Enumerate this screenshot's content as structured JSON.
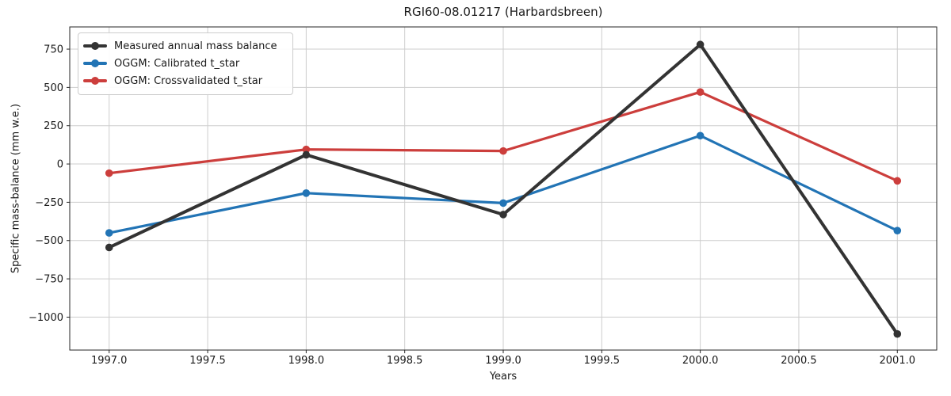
{
  "figure": {
    "background_color": "#ffffff",
    "text_color": "#1a1a1a",
    "grid_color": "#cdcdcd",
    "spine_color": "#262626"
  },
  "chart_data": {
    "type": "line",
    "title": "RGI60-08.01217 (Harbardsbreen)",
    "xlabel": "Years",
    "ylabel": "Specific mass-balance (mm w.e.)",
    "x": [
      1997,
      1998,
      1999,
      2000,
      2001
    ],
    "series": [
      {
        "name": "Measured annual mass balance",
        "color": "#333333",
        "line_width": 4,
        "marker": "circle",
        "values": [
          -545,
          60,
          -330,
          780,
          -1110
        ]
      },
      {
        "name": "OGGM: Calibrated t_star",
        "color": "#2274b5",
        "line_width": 3.2,
        "marker": "circle",
        "values": [
          -450,
          -190,
          -255,
          185,
          -435
        ]
      },
      {
        "name": "OGGM: Crossvalidated t_star",
        "color": "#cc3e3c",
        "line_width": 3.2,
        "marker": "circle",
        "values": [
          -60,
          95,
          85,
          470,
          -110
        ]
      }
    ],
    "xticks": [
      1997.0,
      1997.5,
      1998.0,
      1998.5,
      1999.0,
      1999.5,
      2000.0,
      2000.5,
      2001.0
    ],
    "xtick_labels": [
      "1997.0",
      "1997.5",
      "1998.0",
      "1998.5",
      "1999.0",
      "1999.5",
      "2000.0",
      "2000.5",
      "2001.0"
    ],
    "yticks": [
      750,
      500,
      250,
      0,
      -250,
      -500,
      -750,
      -1000
    ],
    "ytick_labels": [
      "750",
      "500",
      "250",
      "0",
      "−250",
      "−500",
      "−750",
      "−1000"
    ],
    "xlim": [
      1996.8,
      2001.2
    ],
    "ylim": [
      -1215,
      895
    ],
    "grid": true,
    "legend_position": "upper-left",
    "marker_radius": 4.8
  }
}
